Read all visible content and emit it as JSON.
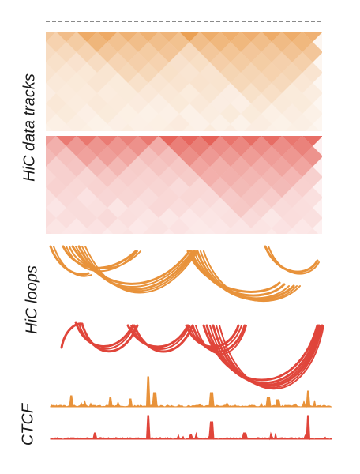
{
  "labels": {
    "hic_tracks": "HiC data tracks",
    "hic_loops": "HiC loops",
    "ctcf": "CTCF"
  },
  "colors": {
    "orange": "#e8923a",
    "red": "#e0453a",
    "orange_light": "#fbe6c9",
    "red_light": "#f7c6c6",
    "label": "#1a1a1a",
    "ruler": "#8a8a8a"
  },
  "icons": [
    "ruler-dashed-icon"
  ]
}
